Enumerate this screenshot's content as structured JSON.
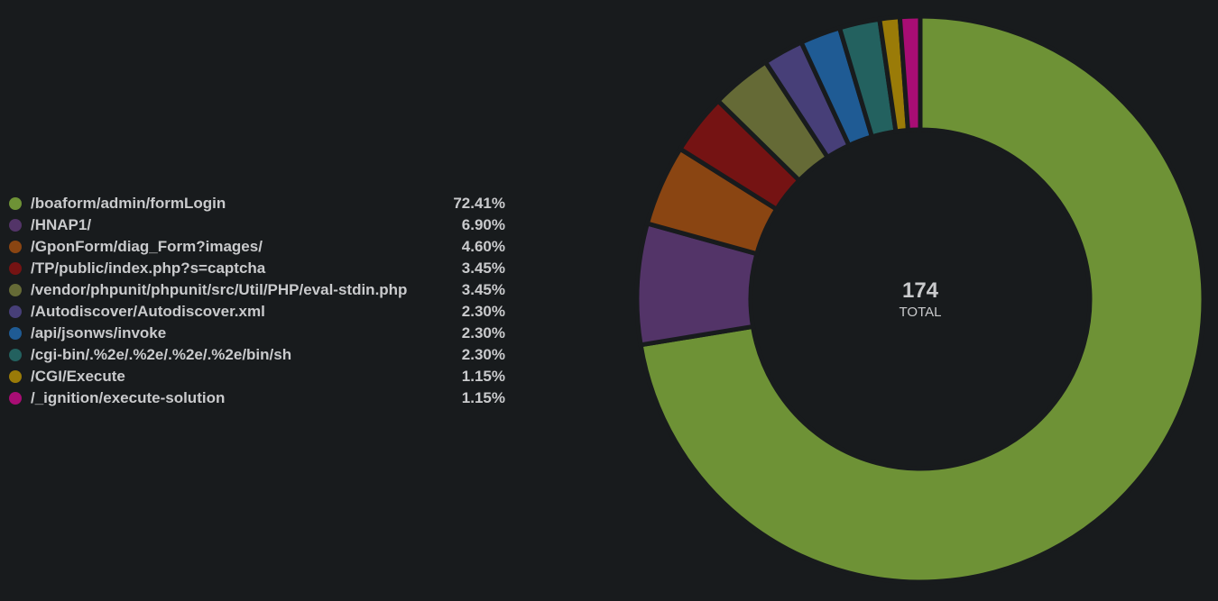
{
  "chart_data": {
    "type": "pie",
    "variant": "donut",
    "total": 174,
    "total_label": "TOTAL",
    "legend_position": "left",
    "slices": [
      {
        "label": "/boaform/admin/formLogin",
        "percent_label": "72.41%",
        "value": 126,
        "color": "#6e9236"
      },
      {
        "label": "/HNAP1/",
        "percent_label": "6.90%",
        "value": 12,
        "color": "#533468"
      },
      {
        "label": "/GponForm/diag_Form?images/",
        "percent_label": "4.60%",
        "value": 8,
        "color": "#8a4512"
      },
      {
        "label": "/TP/public/index.php?s=captcha",
        "percent_label": "3.45%",
        "value": 6,
        "color": "#751313"
      },
      {
        "label": "/vendor/phpunit/phpunit/src/Util/PHP/eval-stdin.php",
        "percent_label": "3.45%",
        "value": 6,
        "color": "#656a36"
      },
      {
        "label": "/Autodiscover/Autodiscover.xml",
        "percent_label": "2.30%",
        "value": 4,
        "color": "#473f78"
      },
      {
        "label": "/api/jsonws/invoke",
        "percent_label": "2.30%",
        "value": 4,
        "color": "#1f5b94"
      },
      {
        "label": "/cgi-bin/.%2e/.%2e/.%2e/.%2e/bin/sh",
        "percent_label": "2.30%",
        "value": 4,
        "color": "#23615f"
      },
      {
        "label": "/CGI/Execute",
        "percent_label": "1.15%",
        "value": 2,
        "color": "#9a7b08"
      },
      {
        "label": "/_ignition/execute-solution",
        "percent_label": "1.15%",
        "value": 2,
        "color": "#a80d74"
      }
    ]
  }
}
